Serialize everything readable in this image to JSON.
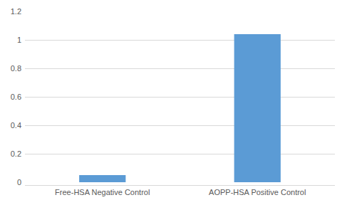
{
  "chart_data": {
    "type": "bar",
    "categories": [
      "Free-HSA Negative Control",
      "AOPP-HSA Positive Control"
    ],
    "values": [
      0.05,
      1.04
    ],
    "color": "#5b9bd5",
    "ylim": [
      0,
      1.2
    ],
    "yticks": [
      0,
      0.2,
      0.4,
      0.6,
      0.8,
      1,
      1.2
    ],
    "grid": true
  }
}
